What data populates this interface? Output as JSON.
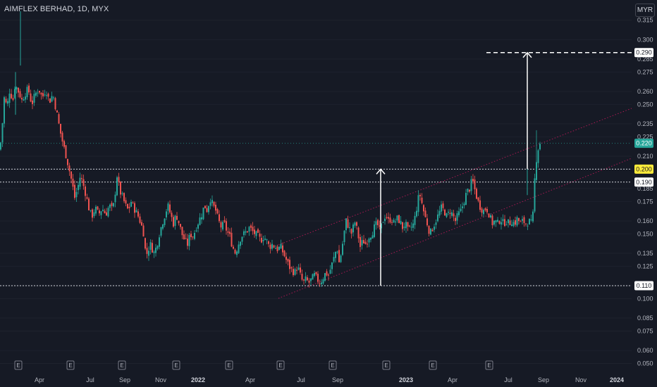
{
  "header": {
    "title": "AIMFLEX BERHAD, 1D, MYX",
    "currency": "MYR"
  },
  "colors": {
    "background": "#161a25",
    "up": "#26a69a",
    "down": "#ef5350",
    "channel": "#c2185b",
    "level_line": "#ffffff",
    "last_price_tag": "#26a69a",
    "highlight_tag": "#ffeb3b"
  },
  "chart_data": {
    "type": "candlestick",
    "y_axis": {
      "ticks": [
        "0.050",
        "0.060",
        "0.075",
        "0.085",
        "0.100",
        "0.110",
        "0.125",
        "0.135",
        "0.150",
        "0.160",
        "0.175",
        "0.185",
        "0.200",
        "0.210",
        "0.225",
        "0.235",
        "0.250",
        "0.260",
        "0.275",
        "0.285",
        "0.300",
        "0.315"
      ],
      "range": [
        0.047,
        0.323
      ]
    },
    "x_axis": {
      "labels": [
        {
          "text": "Apr",
          "year": false
        },
        {
          "text": "Jul",
          "year": false
        },
        {
          "text": "Sep",
          "year": false
        },
        {
          "text": "Nov",
          "year": false
        },
        {
          "text": "2022",
          "year": true
        },
        {
          "text": "Apr",
          "year": false
        },
        {
          "text": "Jul",
          "year": false
        },
        {
          "text": "Sep",
          "year": false
        },
        {
          "text": "2023",
          "year": true
        },
        {
          "text": "Apr",
          "year": false
        },
        {
          "text": "Jul",
          "year": false
        },
        {
          "text": "Sep",
          "year": false
        },
        {
          "text": "Nov",
          "year": false
        },
        {
          "text": "2024",
          "year": true
        }
      ]
    },
    "earnings_markers": [
      "E",
      "E",
      "E",
      "E",
      "E",
      "E",
      "E",
      "E",
      "E",
      "E"
    ],
    "price_tags": [
      {
        "value": "0.290",
        "kind": "target"
      },
      {
        "value": "0.220",
        "kind": "last"
      },
      {
        "value": "0.200",
        "kind": "highlight"
      },
      {
        "value": "0.190",
        "kind": "level"
      },
      {
        "value": "0.110",
        "kind": "level"
      }
    ],
    "horizontal_levels": [
      0.2,
      0.19,
      0.11
    ],
    "target_level": 0.29,
    "last_price": 0.22,
    "path": [
      [
        0,
        0.215
      ],
      [
        3,
        0.232
      ],
      [
        6,
        0.255
      ],
      [
        10,
        0.248
      ],
      [
        14,
        0.262
      ],
      [
        18,
        0.252
      ],
      [
        22,
        0.268
      ],
      [
        25,
        0.258
      ],
      [
        27,
        0.262
      ],
      [
        30,
        0.252
      ],
      [
        35,
        0.258
      ],
      [
        40,
        0.262
      ],
      [
        45,
        0.25
      ],
      [
        50,
        0.258
      ],
      [
        55,
        0.262
      ],
      [
        60,
        0.255
      ],
      [
        65,
        0.262
      ],
      [
        70,
        0.252
      ],
      [
        75,
        0.258
      ],
      [
        80,
        0.245
      ],
      [
        85,
        0.23
      ],
      [
        90,
        0.218
      ],
      [
        94,
        0.21
      ],
      [
        98,
        0.2
      ],
      [
        102,
        0.19
      ],
      [
        106,
        0.178
      ],
      [
        110,
        0.185
      ],
      [
        114,
        0.195
      ],
      [
        118,
        0.188
      ],
      [
        122,
        0.18
      ],
      [
        126,
        0.17
      ],
      [
        130,
        0.163
      ],
      [
        135,
        0.17
      ],
      [
        140,
        0.165
      ],
      [
        145,
        0.17
      ],
      [
        150,
        0.165
      ],
      [
        155,
        0.172
      ],
      [
        160,
        0.168
      ],
      [
        163,
        0.18
      ],
      [
        166,
        0.195
      ],
      [
        170,
        0.183
      ],
      [
        174,
        0.178
      ],
      [
        178,
        0.172
      ],
      [
        182,
        0.168
      ],
      [
        186,
        0.175
      ],
      [
        190,
        0.17
      ],
      [
        195,
        0.165
      ],
      [
        200,
        0.158
      ],
      [
        204,
        0.15
      ],
      [
        207,
        0.132
      ],
      [
        210,
        0.138
      ],
      [
        214,
        0.142
      ],
      [
        218,
        0.135
      ],
      [
        222,
        0.14
      ],
      [
        226,
        0.15
      ],
      [
        230,
        0.158
      ],
      [
        234,
        0.165
      ],
      [
        238,
        0.172
      ],
      [
        242,
        0.165
      ],
      [
        246,
        0.158
      ],
      [
        250,
        0.165
      ],
      [
        254,
        0.158
      ],
      [
        258,
        0.15
      ],
      [
        262,
        0.145
      ],
      [
        266,
        0.142
      ],
      [
        270,
        0.15
      ],
      [
        274,
        0.148
      ],
      [
        278,
        0.155
      ],
      [
        282,
        0.16
      ],
      [
        286,
        0.165
      ],
      [
        290,
        0.172
      ],
      [
        294,
        0.168
      ],
      [
        298,
        0.178
      ],
      [
        302,
        0.172
      ],
      [
        306,
        0.168
      ],
      [
        310,
        0.16
      ],
      [
        314,
        0.155
      ],
      [
        318,
        0.158
      ],
      [
        322,
        0.152
      ],
      [
        326,
        0.148
      ],
      [
        330,
        0.14
      ],
      [
        334,
        0.135
      ],
      [
        338,
        0.142
      ],
      [
        342,
        0.148
      ],
      [
        346,
        0.15
      ],
      [
        350,
        0.152
      ],
      [
        354,
        0.155
      ],
      [
        358,
        0.152
      ],
      [
        362,
        0.15
      ],
      [
        366,
        0.148
      ],
      [
        370,
        0.145
      ],
      [
        374,
        0.148
      ],
      [
        378,
        0.145
      ],
      [
        382,
        0.14
      ],
      [
        386,
        0.142
      ],
      [
        390,
        0.14
      ],
      [
        394,
        0.138
      ],
      [
        398,
        0.14
      ],
      [
        402,
        0.135
      ],
      [
        406,
        0.13
      ],
      [
        410,
        0.125
      ],
      [
        414,
        0.122
      ],
      [
        418,
        0.12
      ],
      [
        422,
        0.125
      ],
      [
        426,
        0.118
      ],
      [
        430,
        0.112
      ],
      [
        434,
        0.115
      ],
      [
        438,
        0.112
      ],
      [
        442,
        0.115
      ],
      [
        446,
        0.118
      ],
      [
        450,
        0.115
      ],
      [
        454,
        0.112
      ],
      [
        458,
        0.116
      ],
      [
        462,
        0.12
      ],
      [
        466,
        0.118
      ],
      [
        470,
        0.125
      ],
      [
        474,
        0.132
      ],
      [
        478,
        0.14
      ],
      [
        481,
        0.128
      ],
      [
        484,
        0.135
      ],
      [
        488,
        0.15
      ],
      [
        491,
        0.16
      ],
      [
        495,
        0.155
      ],
      [
        499,
        0.15
      ],
      [
        503,
        0.16
      ],
      [
        507,
        0.152
      ],
      [
        511,
        0.14
      ],
      [
        515,
        0.145
      ],
      [
        519,
        0.142
      ],
      [
        523,
        0.148
      ],
      [
        527,
        0.15
      ],
      [
        531,
        0.155
      ],
      [
        535,
        0.158
      ],
      [
        539,
        0.152
      ],
      [
        543,
        0.16
      ],
      [
        547,
        0.165
      ],
      [
        551,
        0.16
      ],
      [
        555,
        0.162
      ],
      [
        559,
        0.158
      ],
      [
        563,
        0.162
      ],
      [
        567,
        0.16
      ],
      [
        571,
        0.155
      ],
      [
        575,
        0.158
      ],
      [
        579,
        0.152
      ],
      [
        583,
        0.155
      ],
      [
        587,
        0.158
      ],
      [
        591,
        0.17
      ],
      [
        595,
        0.182
      ],
      [
        598,
        0.175
      ],
      [
        602,
        0.165
      ],
      [
        606,
        0.158
      ],
      [
        610,
        0.15
      ],
      [
        614,
        0.155
      ],
      [
        618,
        0.16
      ],
      [
        622,
        0.165
      ],
      [
        626,
        0.17
      ],
      [
        630,
        0.168
      ],
      [
        634,
        0.163
      ],
      [
        638,
        0.168
      ],
      [
        642,
        0.165
      ],
      [
        646,
        0.16
      ],
      [
        650,
        0.165
      ],
      [
        654,
        0.168
      ],
      [
        658,
        0.175
      ],
      [
        662,
        0.182
      ],
      [
        666,
        0.185
      ],
      [
        670,
        0.192
      ],
      [
        674,
        0.183
      ],
      [
        678,
        0.175
      ],
      [
        682,
        0.17
      ],
      [
        686,
        0.168
      ],
      [
        690,
        0.17
      ],
      [
        694,
        0.165
      ],
      [
        698,
        0.158
      ],
      [
        702,
        0.16
      ],
      [
        706,
        0.158
      ],
      [
        710,
        0.162
      ],
      [
        714,
        0.158
      ],
      [
        718,
        0.16
      ],
      [
        722,
        0.158
      ],
      [
        726,
        0.16
      ],
      [
        730,
        0.158
      ],
      [
        734,
        0.162
      ],
      [
        738,
        0.158
      ],
      [
        742,
        0.16
      ],
      [
        746,
        0.158
      ],
      [
        750,
        0.16
      ],
      [
        754,
        0.158
      ],
      [
        757,
        0.168
      ],
      [
        759,
        0.2
      ],
      [
        762,
        0.212
      ],
      [
        765,
        0.22
      ],
      [
        768,
        0.22
      ]
    ]
  }
}
